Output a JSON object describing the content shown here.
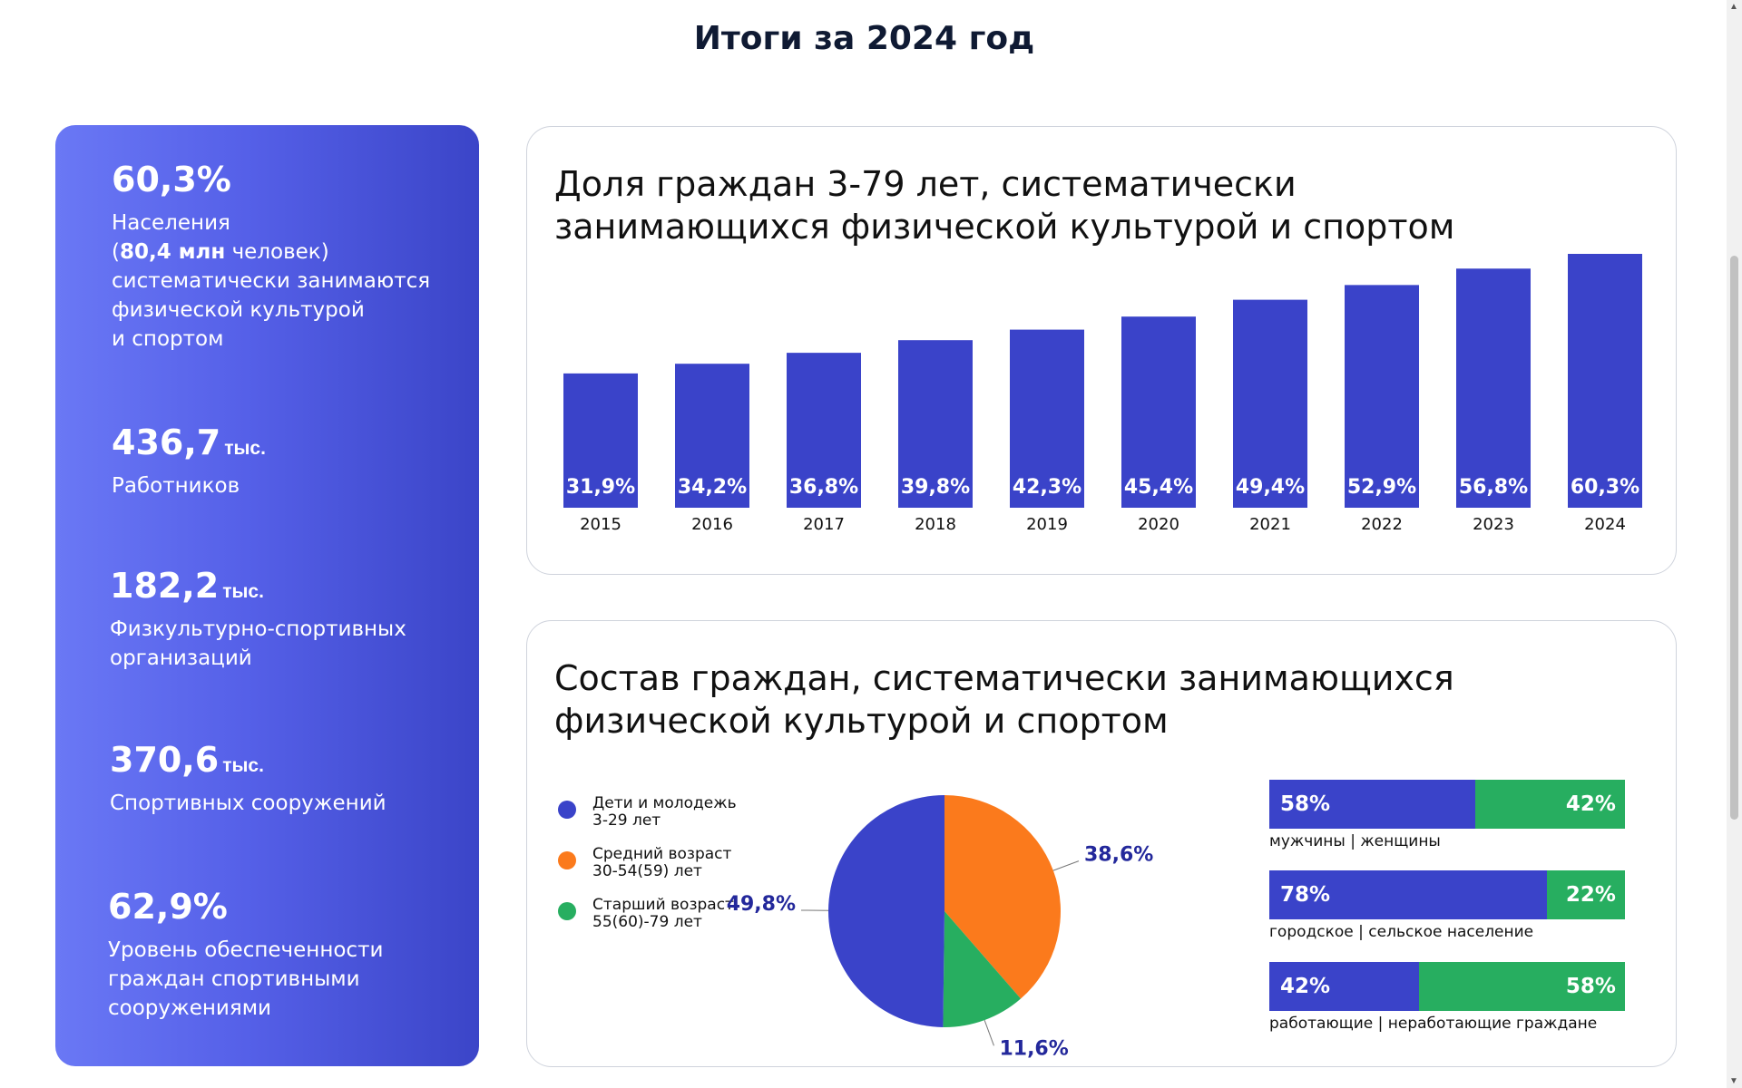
{
  "page": {
    "title": "Итоги за 2024 год"
  },
  "stats": [
    {
      "value": "60,3%",
      "unit": "",
      "desc_lines": [
        "Населения",
        "(|80,4 млн| человек)",
        "систематически занимаются",
        "физической культурой",
        "и спортом"
      ]
    },
    {
      "value": "436,7",
      "unit": "тыс.",
      "desc_lines": [
        "Работников"
      ]
    },
    {
      "value": "182,2",
      "unit": "тыс.",
      "desc_lines": [
        "Физкультурно-спортивных",
        "организаций"
      ]
    },
    {
      "value": "370,6",
      "unit": "тыс.",
      "desc_lines": [
        "Спортивных сооружений"
      ]
    },
    {
      "value": "62,9%",
      "unit": "",
      "desc_lines": [
        "Уровень обеспеченности",
        "граждан спортивными",
        "сооружениями"
      ]
    }
  ],
  "bar_card": {
    "title": "Доля граждан 3-79 лет, систематически занимающихся физической культурой и спортом"
  },
  "pie_card": {
    "title": "Состав граждан, систематически занимающихся физической культурой и спортом"
  },
  "chart_data": [
    {
      "type": "bar",
      "title": "Доля граждан 3-79 лет, систематически занимающихся физической культурой и спортом",
      "categories": [
        "2015",
        "2016",
        "2017",
        "2018",
        "2019",
        "2020",
        "2021",
        "2022",
        "2023",
        "2024"
      ],
      "values": [
        31.9,
        34.2,
        36.8,
        39.8,
        42.3,
        45.4,
        49.4,
        52.9,
        56.8,
        60.3
      ],
      "value_labels": [
        "31,9%",
        "34,2%",
        "36,8%",
        "39,8%",
        "42,3%",
        "45,4%",
        "49,4%",
        "52,9%",
        "56,8%",
        "60,3%"
      ],
      "unit": "%",
      "grid": false,
      "color": "#3a43c9"
    },
    {
      "type": "pie",
      "title": "Состав граждан, систематически занимающихся физической культурой и спортом",
      "labels": [
        "Дети и молодежь 3-29 лет",
        "Средний возраст 30-54(59) лет",
        "Старший возраст 55(60)-79 лет"
      ],
      "legend_lines": [
        [
          "Дети и молодежь",
          "3-29 лет"
        ],
        [
          "Средний возраст",
          "30-54(59) лет"
        ],
        [
          "Старший возраст",
          "55(60)-79 лет"
        ]
      ],
      "values": [
        49.8,
        38.6,
        11.6
      ],
      "value_labels": [
        "49,8%",
        "38,6%",
        "11,6%"
      ],
      "colors": [
        "#3a43c9",
        "#fb7a1c",
        "#27ae60"
      ],
      "legend_position": "left"
    },
    {
      "type": "bar",
      "orientation": "horizontal-stacked",
      "series": [
        {
          "caption": "мужчины | женщины",
          "values": [
            58,
            42
          ],
          "value_labels": [
            "58%",
            "42%"
          ]
        },
        {
          "caption": "городское | сельское население",
          "values": [
            78,
            22
          ],
          "value_labels": [
            "78%",
            "22%"
          ]
        },
        {
          "caption": "работающие | неработающие граждане",
          "values": [
            42,
            58
          ],
          "value_labels": [
            "42%",
            "58%"
          ]
        }
      ],
      "colors": [
        "#3a43c9",
        "#27ae60"
      ]
    }
  ]
}
